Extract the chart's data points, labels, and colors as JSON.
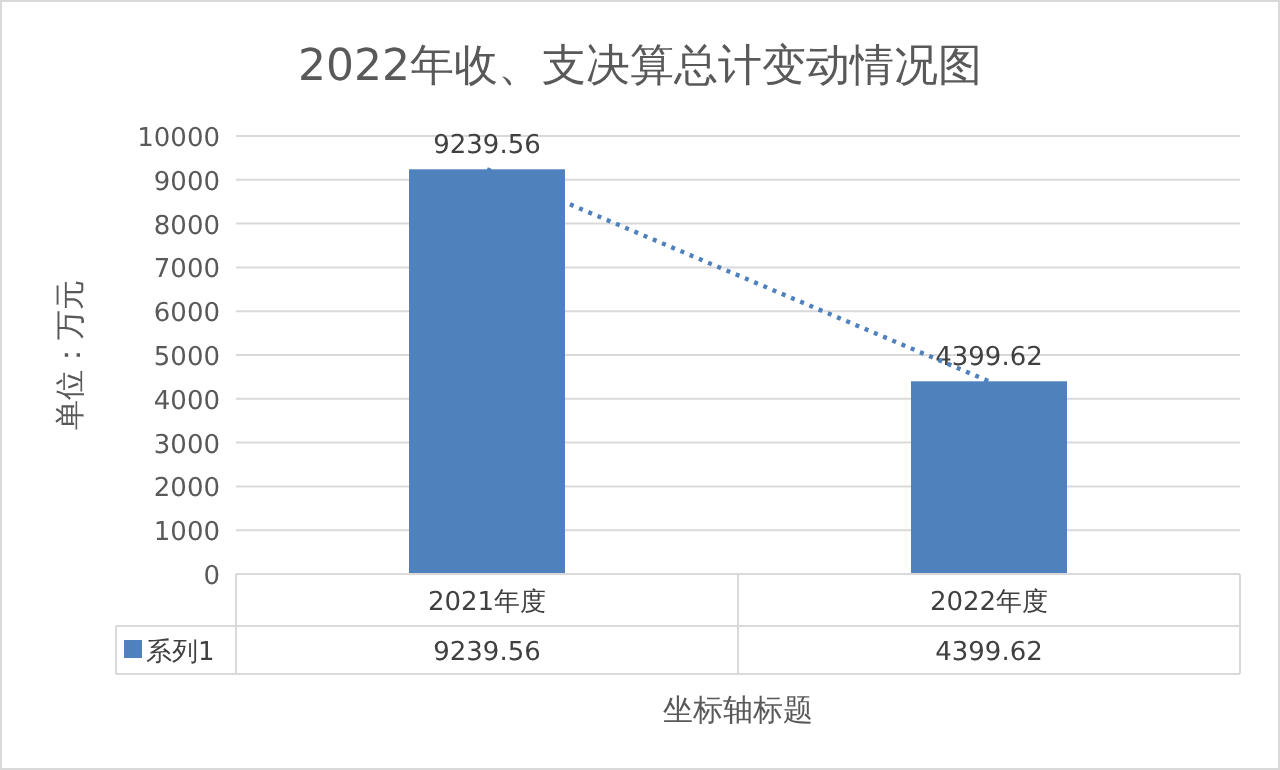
{
  "chart_data": {
    "type": "bar",
    "title": "2022年收、支决算总计变动情况图",
    "xlabel": "坐标轴标题",
    "ylabel": "单位：万元",
    "categories": [
      "2021年度",
      "2022年度"
    ],
    "series": [
      {
        "name": "系列1",
        "color": "#4f81bd",
        "values": [
          9239.56,
          4399.62
        ]
      },
      {
        "type": "line",
        "color": "#4f81bd",
        "line_style": "dotted",
        "values": [
          9239.56,
          4399.62
        ]
      }
    ],
    "ylim": [
      0,
      10000
    ],
    "yticks": [
      0,
      1000,
      2000,
      3000,
      4000,
      5000,
      6000,
      7000,
      8000,
      9000,
      10000
    ],
    "grid": "y",
    "legend": "bottom",
    "data_labels": true
  }
}
